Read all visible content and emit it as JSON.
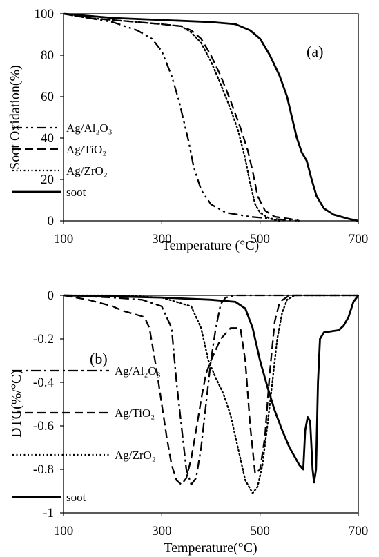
{
  "chart_data": [
    {
      "type": "line",
      "panel_label": "(a)",
      "xlabel": "Temperature (°C)",
      "ylabel": "Soot Oxidation(%)",
      "xlim": [
        100,
        700
      ],
      "ylim": [
        0,
        100
      ],
      "xticks": [
        "100",
        "300",
        "500",
        "700"
      ],
      "yticks": [
        "0",
        "20",
        "40",
        "60",
        "80",
        "100"
      ],
      "legend": "left-middle",
      "grid": false,
      "series": [
        {
          "name": "Ag/Al₂O₃",
          "dash": "dashdotdot",
          "points": [
            [
              100,
              100
            ],
            [
              150,
              98
            ],
            [
              200,
              96
            ],
            [
              250,
              92
            ],
            [
              280,
              88
            ],
            [
              300,
              82
            ],
            [
              320,
              70
            ],
            [
              335,
              58
            ],
            [
              345,
              48
            ],
            [
              355,
              38
            ],
            [
              365,
              26
            ],
            [
              380,
              15
            ],
            [
              400,
              8
            ],
            [
              430,
              4
            ],
            [
              480,
              2
            ],
            [
              550,
              0.5
            ],
            [
              580,
              0
            ]
          ]
        },
        {
          "name": "Ag/TiO₂",
          "dash": "dashed",
          "points": [
            [
              100,
              100
            ],
            [
              150,
              98
            ],
            [
              200,
              97
            ],
            [
              250,
              96
            ],
            [
              300,
              95
            ],
            [
              340,
              94
            ],
            [
              360,
              92
            ],
            [
              380,
              88
            ],
            [
              400,
              80
            ],
            [
              420,
              70
            ],
            [
              440,
              58
            ],
            [
              460,
              45
            ],
            [
              475,
              34
            ],
            [
              485,
              24
            ],
            [
              495,
              12
            ],
            [
              510,
              5
            ],
            [
              530,
              2
            ],
            [
              560,
              1
            ],
            [
              580,
              0
            ]
          ]
        },
        {
          "name": "Ag/ZrO₂",
          "dash": "dotted",
          "points": [
            [
              100,
              100
            ],
            [
              150,
              98
            ],
            [
              200,
              97
            ],
            [
              250,
              96
            ],
            [
              300,
              95
            ],
            [
              340,
              94
            ],
            [
              360,
              91
            ],
            [
              380,
              86
            ],
            [
              400,
              77
            ],
            [
              420,
              66
            ],
            [
              440,
              54
            ],
            [
              455,
              44
            ],
            [
              470,
              30
            ],
            [
              480,
              18
            ],
            [
              490,
              8
            ],
            [
              500,
              4
            ],
            [
              520,
              1
            ],
            [
              540,
              0
            ]
          ]
        },
        {
          "name": "soot",
          "dash": "solid",
          "points": [
            [
              100,
              100
            ],
            [
              200,
              98
            ],
            [
              300,
              97
            ],
            [
              400,
              96
            ],
            [
              450,
              95
            ],
            [
              480,
              92
            ],
            [
              500,
              88
            ],
            [
              520,
              80
            ],
            [
              540,
              70
            ],
            [
              555,
              60
            ],
            [
              565,
              50
            ],
            [
              575,
              40
            ],
            [
              585,
              33
            ],
            [
              595,
              29
            ],
            [
              605,
              20
            ],
            [
              615,
              12
            ],
            [
              630,
              6
            ],
            [
              650,
              3
            ],
            [
              680,
              1
            ],
            [
              700,
              0
            ]
          ]
        }
      ]
    },
    {
      "type": "line",
      "panel_label": "(b)",
      "xlabel": "Temperature(°C)",
      "ylabel": "DTG(%/°C)",
      "xlim": [
        100,
        700
      ],
      "ylim": [
        -1,
        0
      ],
      "xticks": [
        "100",
        "300",
        "500",
        "700"
      ],
      "yticks": [
        "0",
        "-0.2",
        "-0.4",
        "-0.6",
        "-0.8",
        "-1"
      ],
      "legend": "left-bottom",
      "grid": false,
      "series": [
        {
          "name": "Ag/Al₂O₃",
          "dash": "dashdot",
          "points": [
            [
              100,
              0
            ],
            [
              200,
              -0.01
            ],
            [
              260,
              -0.02
            ],
            [
              300,
              -0.05
            ],
            [
              320,
              -0.15
            ],
            [
              330,
              -0.4
            ],
            [
              340,
              -0.6
            ],
            [
              350,
              -0.8
            ],
            [
              360,
              -0.87
            ],
            [
              370,
              -0.84
            ],
            [
              380,
              -0.7
            ],
            [
              390,
              -0.5
            ],
            [
              400,
              -0.3
            ],
            [
              410,
              -0.15
            ],
            [
              420,
              -0.04
            ],
            [
              430,
              -0.01
            ],
            [
              450,
              0
            ],
            [
              700,
              0
            ]
          ]
        },
        {
          "name": "Ag/TiO₂",
          "dash": "dashed",
          "points": [
            [
              100,
              0
            ],
            [
              150,
              -0.02
            ],
            [
              200,
              -0.05
            ],
            [
              220,
              -0.07
            ],
            [
              250,
              -0.09
            ],
            [
              265,
              -0.1
            ],
            [
              275,
              -0.15
            ],
            [
              290,
              -0.35
            ],
            [
              300,
              -0.5
            ],
            [
              310,
              -0.65
            ],
            [
              320,
              -0.78
            ],
            [
              330,
              -0.85
            ],
            [
              340,
              -0.87
            ],
            [
              350,
              -0.84
            ],
            [
              360,
              -0.75
            ],
            [
              370,
              -0.62
            ],
            [
              380,
              -0.48
            ],
            [
              390,
              -0.36
            ],
            [
              400,
              -0.3
            ],
            [
              410,
              -0.25
            ],
            [
              420,
              -0.2
            ],
            [
              440,
              -0.15
            ],
            [
              460,
              -0.15
            ],
            [
              470,
              -0.3
            ],
            [
              480,
              -0.6
            ],
            [
              490,
              -0.82
            ],
            [
              500,
              -0.8
            ],
            [
              510,
              -0.65
            ],
            [
              520,
              -0.35
            ],
            [
              530,
              -0.12
            ],
            [
              540,
              -0.03
            ],
            [
              560,
              0
            ],
            [
              700,
              0
            ]
          ]
        },
        {
          "name": "Ag/ZrO₂",
          "dash": "dotted",
          "points": [
            [
              100,
              0
            ],
            [
              200,
              0
            ],
            [
              300,
              -0.01
            ],
            [
              360,
              -0.05
            ],
            [
              380,
              -0.15
            ],
            [
              395,
              -0.3
            ],
            [
              410,
              -0.38
            ],
            [
              425,
              -0.45
            ],
            [
              440,
              -0.55
            ],
            [
              455,
              -0.7
            ],
            [
              470,
              -0.85
            ],
            [
              485,
              -0.91
            ],
            [
              495,
              -0.88
            ],
            [
              505,
              -0.78
            ],
            [
              515,
              -0.6
            ],
            [
              525,
              -0.4
            ],
            [
              535,
              -0.2
            ],
            [
              545,
              -0.08
            ],
            [
              555,
              -0.02
            ],
            [
              570,
              0
            ],
            [
              700,
              0
            ]
          ]
        },
        {
          "name": "soot",
          "dash": "solid",
          "points": [
            [
              100,
              0
            ],
            [
              300,
              -0.01
            ],
            [
              400,
              -0.02
            ],
            [
              450,
              -0.03
            ],
            [
              470,
              -0.06
            ],
            [
              485,
              -0.15
            ],
            [
              500,
              -0.3
            ],
            [
              515,
              -0.42
            ],
            [
              530,
              -0.53
            ],
            [
              545,
              -0.62
            ],
            [
              560,
              -0.7
            ],
            [
              570,
              -0.74
            ],
            [
              580,
              -0.78
            ],
            [
              588,
              -0.8
            ],
            [
              592,
              -0.62
            ],
            [
              597,
              -0.56
            ],
            [
              602,
              -0.58
            ],
            [
              607,
              -0.8
            ],
            [
              610,
              -0.86
            ],
            [
              614,
              -0.8
            ],
            [
              618,
              -0.4
            ],
            [
              622,
              -0.2
            ],
            [
              630,
              -0.17
            ],
            [
              660,
              -0.16
            ],
            [
              670,
              -0.14
            ],
            [
              680,
              -0.1
            ],
            [
              690,
              -0.03
            ],
            [
              700,
              0
            ]
          ]
        }
      ]
    }
  ]
}
